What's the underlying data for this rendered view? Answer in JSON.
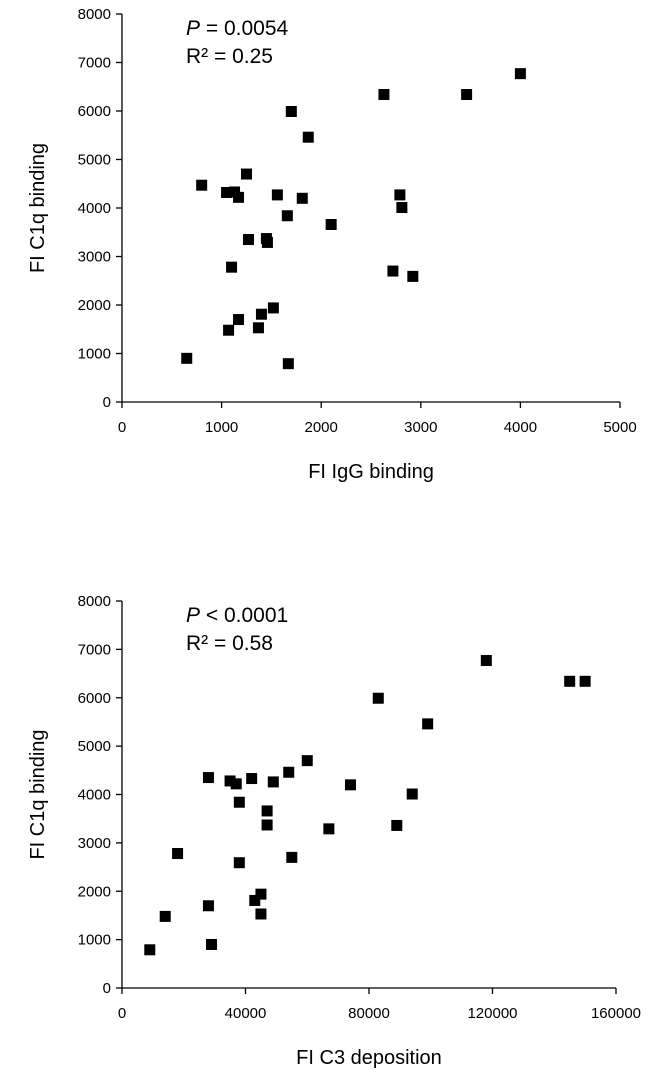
{
  "chart_data": [
    {
      "type": "scatter",
      "xlabel": "FI IgG binding",
      "ylabel": "FI C1q binding",
      "xlim": [
        0,
        5000
      ],
      "ylim": [
        0,
        8000
      ],
      "xticks": [
        0,
        1000,
        2000,
        3000,
        4000,
        5000
      ],
      "yticks": [
        0,
        1000,
        2000,
        3000,
        4000,
        5000,
        6000,
        7000,
        8000
      ],
      "annotation": {
        "p_prefix": "P",
        "p_value": " = 0.0054",
        "r2_text": "R² = 0.25"
      },
      "grid": false,
      "series": [
        {
          "points": [
            [
              650,
              900
            ],
            [
              800,
              4470
            ],
            [
              1050,
              4320
            ],
            [
              1070,
              1480
            ],
            [
              1100,
              2780
            ],
            [
              1130,
              4330
            ],
            [
              1170,
              4220
            ],
            [
              1170,
              1700
            ],
            [
              1250,
              4700
            ],
            [
              1270,
              3350
            ],
            [
              1370,
              1530
            ],
            [
              1400,
              1810
            ],
            [
              1450,
              3370
            ],
            [
              1460,
              3290
            ],
            [
              1520,
              1940
            ],
            [
              1560,
              4270
            ],
            [
              1660,
              3840
            ],
            [
              1670,
              790
            ],
            [
              1700,
              5990
            ],
            [
              1810,
              4200
            ],
            [
              1870,
              5460
            ],
            [
              2100,
              3660
            ],
            [
              2630,
              6340
            ],
            [
              2720,
              2700
            ],
            [
              2790,
              4270
            ],
            [
              2810,
              4010
            ],
            [
              2920,
              2590
            ],
            [
              3460,
              6340
            ],
            [
              4000,
              6770
            ]
          ]
        }
      ]
    },
    {
      "type": "scatter",
      "xlabel": "FI C3 deposition",
      "ylabel": "FI C1q binding",
      "xlim": [
        0,
        160000
      ],
      "ylim": [
        0,
        8000
      ],
      "xticks": [
        0,
        40000,
        80000,
        120000,
        160000
      ],
      "yticks": [
        0,
        1000,
        2000,
        3000,
        4000,
        5000,
        6000,
        7000,
        8000
      ],
      "annotation": {
        "p_prefix": "P",
        "p_value": " < 0.0001",
        "r2_text": "R² = 0.58"
      },
      "grid": false,
      "series": [
        {
          "points": [
            [
              9000,
              790
            ],
            [
              14000,
              1480
            ],
            [
              18000,
              2780
            ],
            [
              28000,
              4350
            ],
            [
              28000,
              1700
            ],
            [
              29000,
              900
            ],
            [
              35000,
              4280
            ],
            [
              37000,
              4220
            ],
            [
              38000,
              3840
            ],
            [
              38000,
              2590
            ],
            [
              42000,
              4330
            ],
            [
              43000,
              1810
            ],
            [
              45000,
              1940
            ],
            [
              45000,
              1530
            ],
            [
              47000,
              3660
            ],
            [
              47000,
              3370
            ],
            [
              49000,
              4260
            ],
            [
              54000,
              4460
            ],
            [
              55000,
              2700
            ],
            [
              60000,
              4700
            ],
            [
              67000,
              3290
            ],
            [
              74000,
              4200
            ],
            [
              83000,
              5990
            ],
            [
              89000,
              3360
            ],
            [
              94000,
              4010
            ],
            [
              99000,
              5460
            ],
            [
              118000,
              6770
            ],
            [
              145000,
              6340
            ],
            [
              150000,
              6340
            ]
          ]
        }
      ]
    }
  ]
}
